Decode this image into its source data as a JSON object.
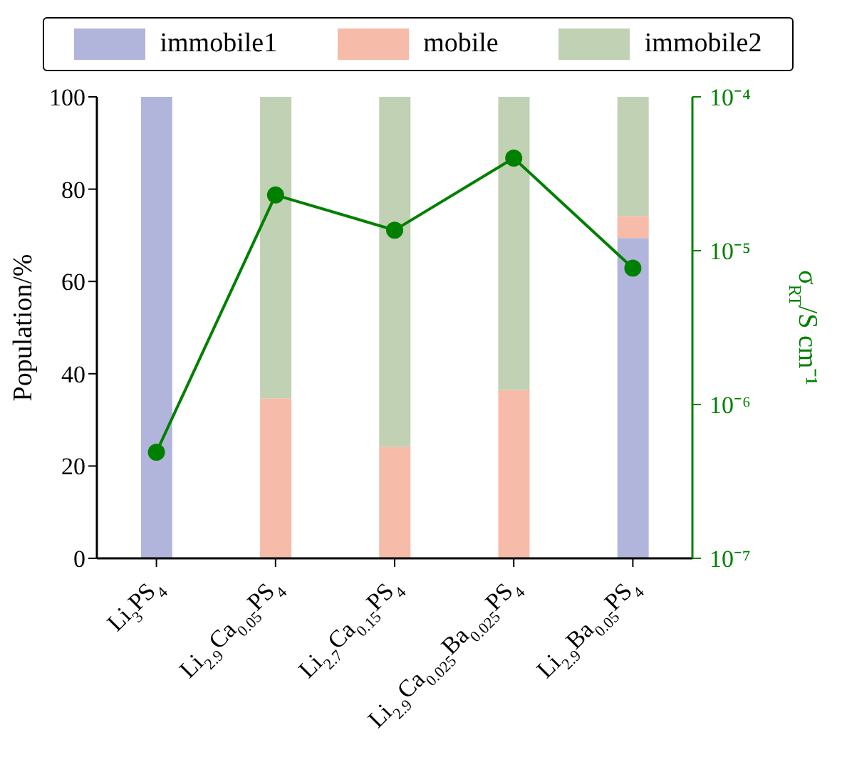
{
  "chart_data": {
    "type": "bar",
    "stacked": true,
    "ylabel": "Population/%",
    "y2label": "σ$_{RT}$/S cm⁻¹",
    "categories": [
      "Li$_{3}$PS$_{4}$",
      "Li$_{2.9}$Ca$_{0.05}$PS$_{4}$",
      "Li$_{2.7}$Ca$_{0.15}$PS$_{4}$",
      "Li$_{2.9}$Ca$_{0.025}$Ba$_{0.025}$PS$_{4}$",
      "Li$_{2.9}$Ba$_{0.05}$PS$_{4}$"
    ],
    "series": [
      {
        "name": "immobile1",
        "color": "#b1b5db",
        "values": [
          100,
          0,
          0,
          0,
          69.4
        ]
      },
      {
        "name": "mobile",
        "color": "#f7bba9",
        "values": [
          0,
          34.7,
          24.2,
          36.5,
          4.8
        ]
      },
      {
        "name": "immobile2",
        "color": "#c0d1b4",
        "values": [
          0,
          65.3,
          75.8,
          63.5,
          25.8
        ]
      },
      {
        "type": "line",
        "axis": "y2",
        "color": "#008000",
        "values": [
          4.9e-07,
          2.3e-05,
          1.36e-05,
          4e-05,
          7.7e-06
        ]
      }
    ],
    "ylim": [
      0,
      100
    ],
    "yticks": [
      0,
      20,
      40,
      60,
      80,
      100
    ],
    "log": "y2",
    "y2lim": [
      1e-07,
      0.0001
    ],
    "y2ticks": [
      {
        "value": 1e-07,
        "label": "10⁻⁷"
      },
      {
        "value": 1e-06,
        "label": "10⁻⁶"
      },
      {
        "value": 1e-05,
        "label": "10⁻⁵"
      },
      {
        "value": 0.0001,
        "label": "10⁻⁴"
      }
    ],
    "marker": "circle",
    "legend": "top"
  }
}
